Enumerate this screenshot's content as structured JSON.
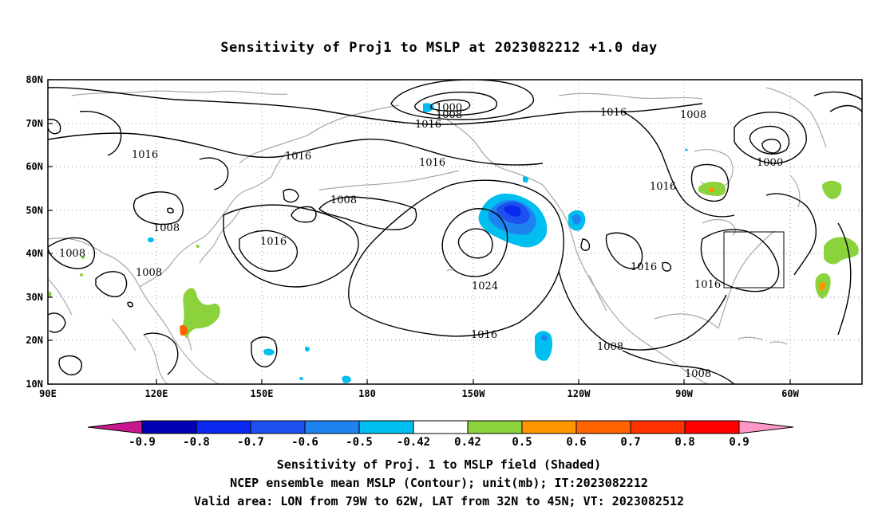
{
  "title": "Sensitivity of Proj1 to MSLP at 2023082212 +1.0 day",
  "lat_labels": [
    "80N",
    "70N",
    "60N",
    "50N",
    "40N",
    "30N",
    "20N",
    "10N"
  ],
  "lon_labels": [
    "90E",
    "120E",
    "150E",
    "180",
    "150W",
    "120W",
    "90W",
    "60W"
  ],
  "contour_labels": [
    "1000",
    "1008",
    "1016",
    "1016",
    "1016",
    "1016",
    "1008",
    "1016",
    "1008",
    "1008",
    "1008",
    "1008",
    "1016",
    "1024",
    "1016",
    "1008",
    "1008",
    "1016",
    "1016",
    "1016",
    "1000",
    "1008"
  ],
  "colorbar": {
    "labels": [
      "-0.9",
      "-0.8",
      "-0.7",
      "-0.6",
      "-0.5",
      "-0.42",
      "0.42",
      "0.5",
      "0.6",
      "0.7",
      "0.8",
      "0.9"
    ],
    "colors": [
      "#c8168c",
      "#0000b4",
      "#0a28f0",
      "#1e50f0",
      "#1e82f0",
      "#00bef0",
      "#ffffff",
      "#8cd23c",
      "#ff9600",
      "#ff6400",
      "#ff3200",
      "#ff0000",
      "#ff96c8"
    ]
  },
  "captions": [
    "Sensitivity of Proj. 1 to MSLP field (Shaded)",
    "NCEP ensemble mean MSLP (Contour); unit(mb); IT:2023082212",
    "Valid area: LON from 79W to 62W, LAT from 32N to 45N; VT: 2023082512"
  ]
}
